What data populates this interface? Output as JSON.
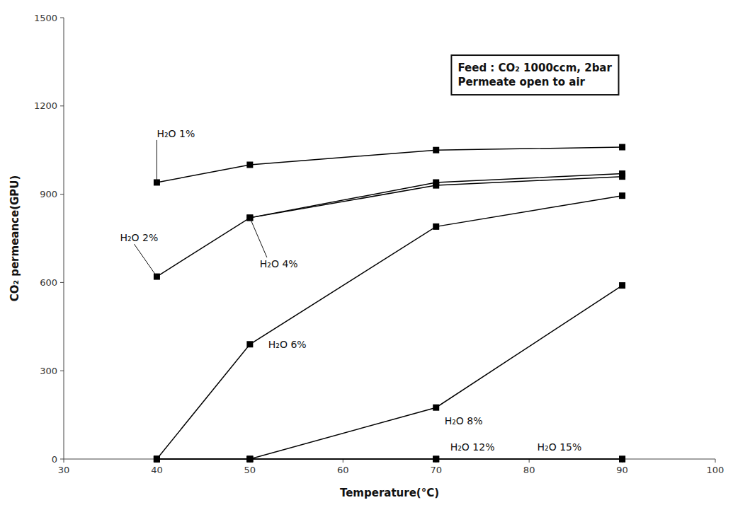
{
  "chart_data": {
    "type": "line",
    "series": [
      {
        "name": "H₂O 1%",
        "x": [
          40,
          50,
          70,
          90
        ],
        "values": [
          940,
          1000,
          1050,
          1060
        ]
      },
      {
        "name": "H₂O 2%",
        "x": [
          40,
          50,
          70,
          90
        ],
        "values": [
          620,
          820,
          940,
          970
        ]
      },
      {
        "name": "H₂O 4%",
        "x": [
          50,
          70,
          90
        ],
        "values": [
          820,
          930,
          960
        ]
      },
      {
        "name": "H₂O 6%",
        "x": [
          40,
          50,
          70,
          90
        ],
        "values": [
          0,
          390,
          790,
          895
        ]
      },
      {
        "name": "H₂O 8%",
        "x": [
          40,
          50,
          70,
          90
        ],
        "values": [
          0,
          0,
          175,
          590
        ]
      },
      {
        "name": "H₂O 12%",
        "x": [
          40,
          50,
          70,
          90
        ],
        "values": [
          0,
          0,
          0,
          0
        ]
      },
      {
        "name": "H₂O 15%",
        "x": [
          40,
          50,
          70,
          90
        ],
        "values": [
          0,
          0,
          0,
          0
        ]
      }
    ],
    "color": "black",
    "marker": "square",
    "xlabel": "Temperature(°C)",
    "ylabel": "CO₂ permeance(GPU)",
    "annotations": [
      "Feed : CO₂ 1000ccm, 2bar",
      "Permeate open to air"
    ],
    "xlim": [
      30,
      100
    ],
    "ylim": [
      0,
      1500
    ],
    "xticks": [
      30,
      40,
      50,
      60,
      70,
      80,
      90,
      100
    ],
    "yticks": [
      0,
      300,
      600,
      900,
      1200,
      1500
    ],
    "grid": false
  }
}
